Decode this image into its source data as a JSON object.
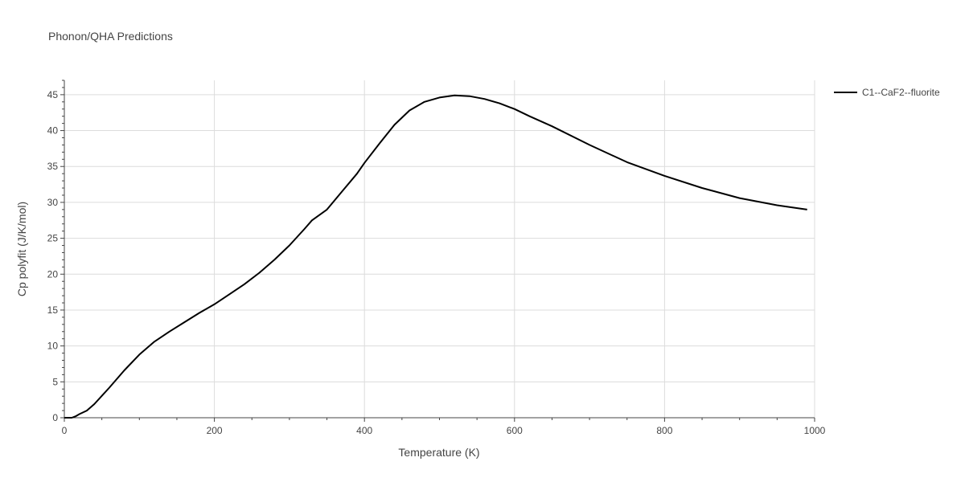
{
  "chart_data": {
    "type": "line",
    "title": "Phonon/QHA Predictions",
    "xlabel": "Temperature (K)",
    "ylabel": "Cp polyfit (J/K/mol)",
    "xlim": [
      0,
      1000
    ],
    "ylim": [
      0,
      47
    ],
    "xticks": [
      0,
      200,
      400,
      600,
      800,
      1000
    ],
    "yticks": [
      0,
      5,
      10,
      15,
      20,
      25,
      30,
      35,
      40,
      45
    ],
    "grid": true,
    "legend_position": "top-right",
    "series": [
      {
        "name": "C1--CaF2--fluorite",
        "color": "#000000",
        "x": [
          0,
          10,
          15,
          20,
          30,
          40,
          60,
          80,
          100,
          120,
          140,
          160,
          180,
          200,
          220,
          240,
          260,
          280,
          300,
          320,
          330,
          350,
          370,
          390,
          400,
          420,
          440,
          460,
          480,
          500,
          520,
          540,
          560,
          580,
          600,
          620,
          650,
          700,
          750,
          800,
          850,
          900,
          950,
          990
        ],
        "y": [
          0,
          0,
          0.2,
          0.5,
          1.0,
          1.9,
          4.2,
          6.6,
          8.8,
          10.6,
          12.0,
          13.3,
          14.6,
          15.8,
          17.2,
          18.6,
          20.2,
          22.0,
          24.0,
          26.3,
          27.5,
          29.0,
          31.5,
          34.0,
          35.5,
          38.2,
          40.8,
          42.8,
          44.0,
          44.6,
          44.9,
          44.8,
          44.4,
          43.8,
          43.0,
          42.0,
          40.6,
          38.0,
          35.6,
          33.7,
          32.0,
          30.6,
          29.6,
          29.0
        ]
      }
    ]
  }
}
